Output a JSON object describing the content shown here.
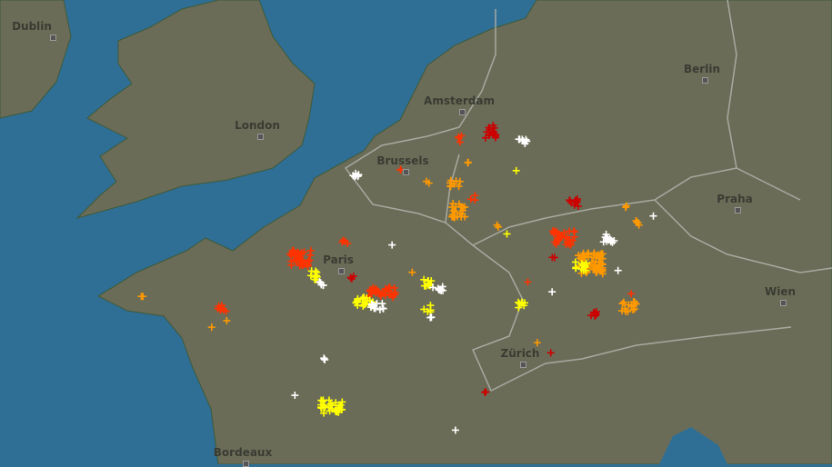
{
  "map": {
    "colors": {
      "sea": "#2f6f96",
      "land": "#6b6c57",
      "coast": "#3d5a3a",
      "border": "#a7a9a0",
      "strike_newest": "#ffffff",
      "strike_new": "#ffff00",
      "strike_mid": "#ff9900",
      "strike_old": "#ff3300",
      "strike_oldest": "#cc0000"
    },
    "cities": [
      {
        "name": "Dublin"
      },
      {
        "name": "London"
      },
      {
        "name": "Amsterdam"
      },
      {
        "name": "Brussels"
      },
      {
        "name": "Paris"
      },
      {
        "name": "Berlin"
      },
      {
        "name": "Praha"
      },
      {
        "name": "Wien"
      },
      {
        "name": "Zürich"
      },
      {
        "name": "Bordeaux"
      }
    ]
  }
}
